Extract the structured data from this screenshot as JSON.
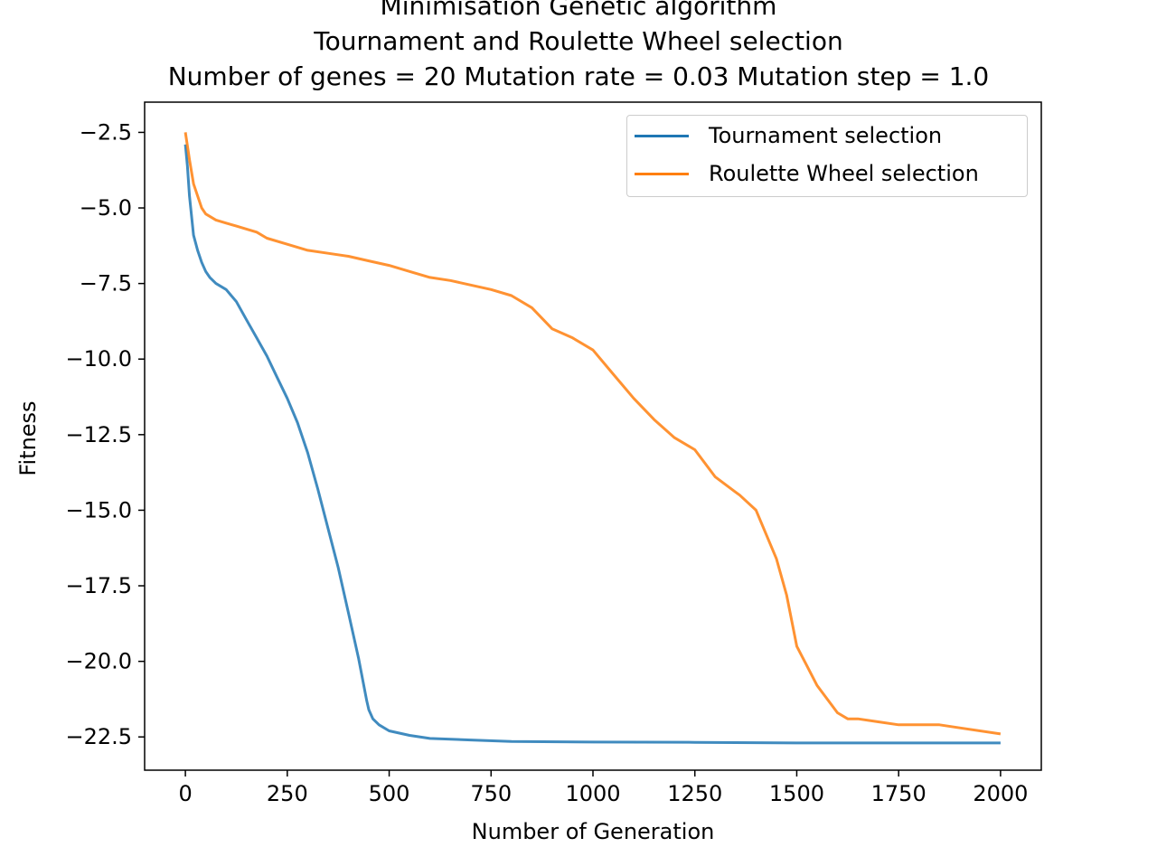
{
  "chart_data": {
    "type": "line",
    "title_lines": [
      "Minimisation Genetic algorithm",
      "Tournament and Roulette Wheel selection",
      "Number of genes = 20 Mutation rate = 0.03 Mutation step = 1.0"
    ],
    "xlabel": "Number of Generation",
    "ylabel": "Fitness",
    "xlim": [
      -100,
      2100
    ],
    "ylim": [
      -23.6,
      -1.5
    ],
    "xticks": [
      0,
      250,
      500,
      750,
      1000,
      1250,
      1500,
      1750,
      2000
    ],
    "xtick_labels": [
      "0",
      "250",
      "500",
      "750",
      "1000",
      "1250",
      "1500",
      "1750",
      "2000"
    ],
    "yticks": [
      -2.5,
      -5.0,
      -7.5,
      -10.0,
      -12.5,
      -15.0,
      -17.5,
      -20.0,
      -22.5
    ],
    "ytick_labels": [
      "−2.5",
      "−5.0",
      "−7.5",
      "−10.0",
      "−12.5",
      "−15.0",
      "−17.5",
      "−20.0",
      "−22.5"
    ],
    "grid": false,
    "legend_position": "top-right",
    "series": [
      {
        "name": "Tournament selection",
        "color": "#1f77b4",
        "x": [
          0,
          5,
          10,
          20,
          30,
          40,
          50,
          60,
          75,
          100,
          125,
          150,
          175,
          200,
          225,
          250,
          275,
          300,
          325,
          350,
          375,
          400,
          425,
          445,
          450,
          460,
          475,
          500,
          550,
          600,
          700,
          800,
          1000,
          1250,
          1500,
          1750,
          2000
        ],
        "y": [
          -2.9,
          -3.6,
          -4.6,
          -5.9,
          -6.4,
          -6.8,
          -7.1,
          -7.3,
          -7.5,
          -7.7,
          -8.1,
          -8.7,
          -9.3,
          -9.9,
          -10.6,
          -11.3,
          -12.1,
          -13.1,
          -14.3,
          -15.6,
          -16.9,
          -18.4,
          -19.9,
          -21.3,
          -21.6,
          -21.9,
          -22.1,
          -22.3,
          -22.45,
          -22.55,
          -22.6,
          -22.65,
          -22.67,
          -22.68,
          -22.7,
          -22.7,
          -22.7
        ]
      },
      {
        "name": "Roulette Wheel selection",
        "color": "#ff7f0e",
        "x": [
          0,
          10,
          20,
          30,
          40,
          50,
          75,
          100,
          125,
          150,
          175,
          200,
          250,
          300,
          350,
          400,
          450,
          500,
          550,
          600,
          650,
          700,
          750,
          800,
          850,
          900,
          950,
          1000,
          1050,
          1100,
          1150,
          1200,
          1250,
          1300,
          1350,
          1360,
          1400,
          1450,
          1475,
          1500,
          1550,
          1600,
          1625,
          1650,
          1700,
          1750,
          1800,
          1850,
          1900,
          2000
        ],
        "y": [
          -2.5,
          -3.4,
          -4.2,
          -4.6,
          -5.0,
          -5.2,
          -5.4,
          -5.5,
          -5.6,
          -5.7,
          -5.8,
          -6.0,
          -6.2,
          -6.4,
          -6.5,
          -6.6,
          -6.75,
          -6.9,
          -7.1,
          -7.3,
          -7.4,
          -7.55,
          -7.7,
          -7.9,
          -8.3,
          -9.0,
          -9.3,
          -9.7,
          -10.5,
          -11.3,
          -12.0,
          -12.6,
          -13.0,
          -13.9,
          -14.4,
          -14.5,
          -15.0,
          -16.6,
          -17.8,
          -19.5,
          -20.8,
          -21.7,
          -21.9,
          -21.9,
          -22.0,
          -22.1,
          -22.1,
          -22.1,
          -22.2,
          -22.4
        ]
      }
    ]
  }
}
